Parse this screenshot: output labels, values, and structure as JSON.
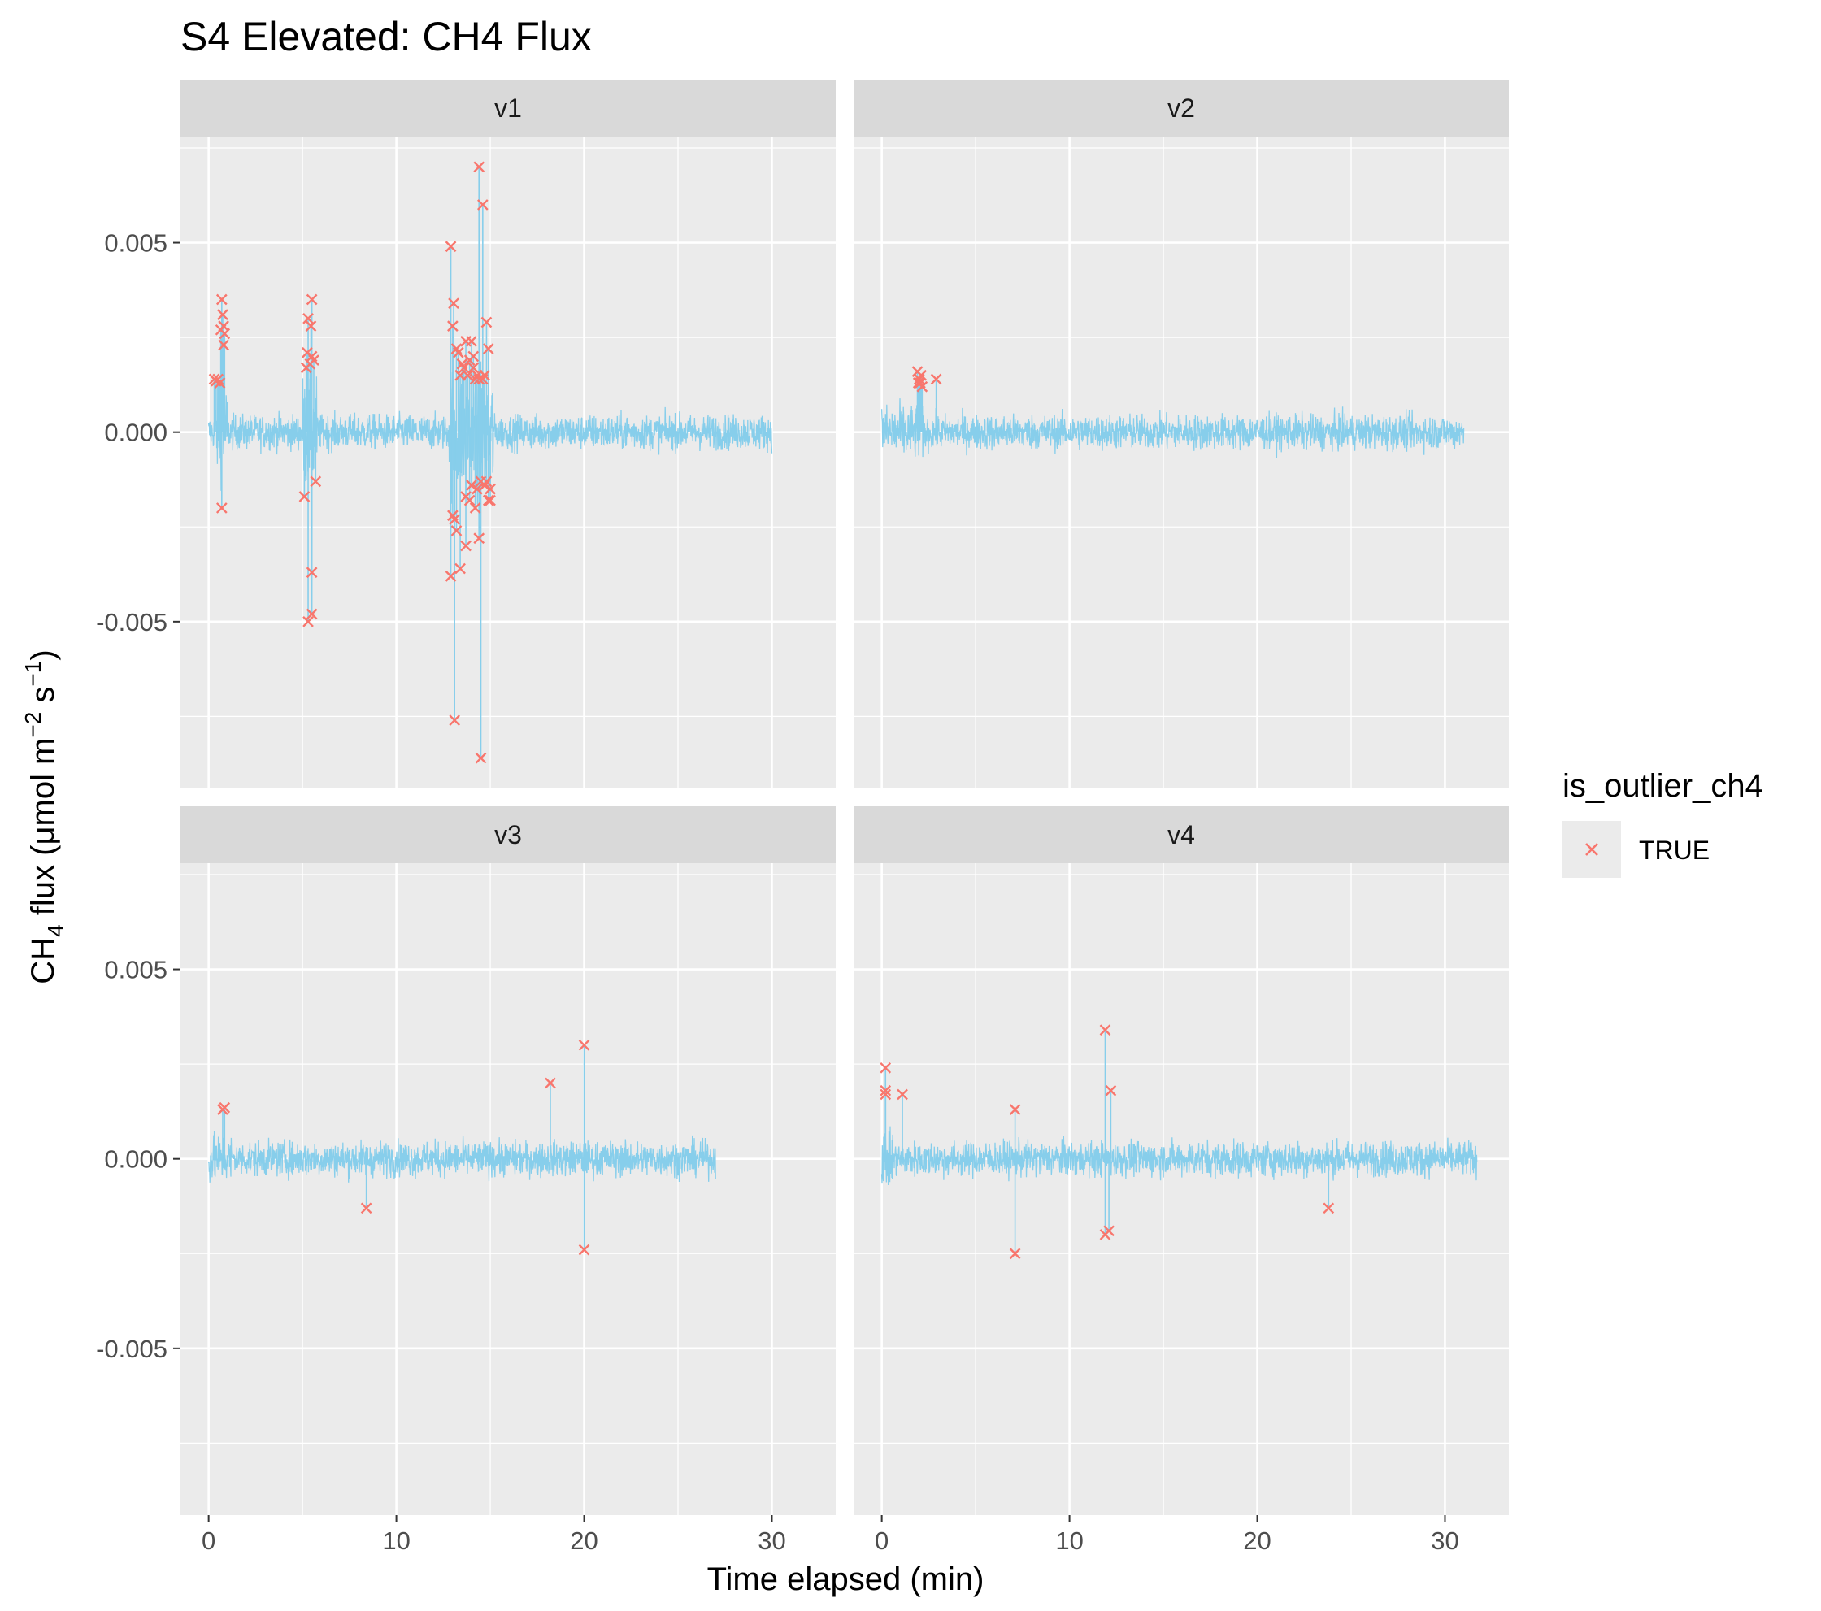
{
  "chart_data": {
    "type": "line",
    "title": "S4 Elevated: CH4 Flux",
    "xlabel": "Time elapsed (min)",
    "ylabel": {
      "main": "CH",
      "sub": "4",
      "rest": " flux (μmol m",
      "sup1": "−2",
      "mid": " s",
      "sup2": "−1",
      "end": ")"
    },
    "xlim": [
      -1.5,
      33.4
    ],
    "ylim": [
      -0.0094,
      0.0078
    ],
    "x_ticks": [
      0,
      10,
      20,
      30
    ],
    "y_ticks": [
      0.005,
      0.0,
      -0.005
    ],
    "y_tick_labels": [
      "0.005",
      "0.000",
      "-0.005"
    ],
    "grid": true,
    "line_color": "#87ceeb",
    "outlier_color": "#f8766d",
    "legend": {
      "title": "is_outlier_ch4",
      "entries": [
        "TRUE"
      ],
      "placement": "right"
    },
    "panels": [
      {
        "name": "v1",
        "x_max": 30.0,
        "noise_amplitude": 0.0005,
        "bursts": [
          {
            "x0": 0.3,
            "x1": 1.0,
            "amp": 0.0013
          },
          {
            "x0": 5.0,
            "x1": 5.8,
            "amp": 0.0016
          },
          {
            "x0": 12.8,
            "x1": 15.2,
            "amp": 0.0018
          }
        ],
        "outliers": [
          [
            0.3,
            0.0014
          ],
          [
            0.4,
            0.00135
          ],
          [
            0.5,
            0.0014
          ],
          [
            0.6,
            0.0013
          ],
          [
            0.65,
            0.0027
          ],
          [
            0.7,
            0.0035
          ],
          [
            0.75,
            0.0031
          ],
          [
            0.8,
            0.0028
          ],
          [
            0.8,
            0.0023
          ],
          [
            0.85,
            0.0026
          ],
          [
            0.7,
            -0.002
          ],
          [
            5.1,
            -0.0017
          ],
          [
            5.2,
            0.0017
          ],
          [
            5.25,
            0.0021
          ],
          [
            5.3,
            0.003
          ],
          [
            5.3,
            -0.005
          ],
          [
            5.4,
            0.0018
          ],
          [
            5.45,
            0.0028
          ],
          [
            5.5,
            0.0035
          ],
          [
            5.5,
            0.002
          ],
          [
            5.5,
            -0.0037
          ],
          [
            5.5,
            -0.0048
          ],
          [
            5.6,
            0.0019
          ],
          [
            5.7,
            -0.0013
          ],
          [
            12.9,
            0.0049
          ],
          [
            12.9,
            -0.0038
          ],
          [
            13.0,
            0.0028
          ],
          [
            13.0,
            -0.0022
          ],
          [
            13.05,
            0.0034
          ],
          [
            13.1,
            -0.0076
          ],
          [
            13.1,
            -0.0023
          ],
          [
            13.2,
            0.0022
          ],
          [
            13.2,
            -0.0026
          ],
          [
            13.3,
            0.0021
          ],
          [
            13.4,
            -0.0036
          ],
          [
            13.4,
            0.0015
          ],
          [
            13.5,
            0.0018
          ],
          [
            13.6,
            0.0017
          ],
          [
            13.7,
            0.0024
          ],
          [
            13.7,
            -0.0017
          ],
          [
            13.7,
            -0.003
          ],
          [
            13.8,
            0.0015
          ],
          [
            13.9,
            -0.0018
          ],
          [
            13.9,
            0.0019
          ],
          [
            14.0,
            0.0024
          ],
          [
            14.0,
            -0.0014
          ],
          [
            14.1,
            0.002
          ],
          [
            14.1,
            0.0017
          ],
          [
            14.2,
            -0.002
          ],
          [
            14.2,
            0.0014
          ],
          [
            14.3,
            0.0015
          ],
          [
            14.3,
            -0.0015
          ],
          [
            14.4,
            -0.0028
          ],
          [
            14.4,
            0.0014
          ],
          [
            14.4,
            0.007
          ],
          [
            14.5,
            -0.0013
          ],
          [
            14.5,
            -0.0086
          ],
          [
            14.6,
            0.0014
          ],
          [
            14.6,
            0.006
          ],
          [
            14.7,
            -0.0014
          ],
          [
            14.7,
            0.0015
          ],
          [
            14.8,
            0.0029
          ],
          [
            14.8,
            -0.0013
          ],
          [
            14.9,
            0.0022
          ],
          [
            14.9,
            -0.0018
          ],
          [
            15.0,
            -0.0018
          ],
          [
            15.0,
            -0.0015
          ]
        ]
      },
      {
        "name": "v2",
        "x_max": 31.0,
        "noise_amplitude": 0.0005,
        "bursts": [
          {
            "x0": 0.0,
            "x1": 2.2,
            "amp": 0.0008
          }
        ],
        "outliers": [
          [
            1.9,
            0.0016
          ],
          [
            1.95,
            0.0013
          ],
          [
            2.0,
            0.0014
          ],
          [
            2.05,
            0.0013
          ],
          [
            2.1,
            0.0015
          ],
          [
            2.15,
            0.0012
          ],
          [
            2.9,
            0.0014
          ]
        ]
      },
      {
        "name": "v3",
        "x_max": 27.0,
        "noise_amplitude": 0.0005,
        "bursts": [
          {
            "x0": 0.0,
            "x1": 1.2,
            "amp": 0.0007
          }
        ],
        "outliers": [
          [
            0.75,
            0.0013
          ],
          [
            0.85,
            0.00135
          ],
          [
            8.4,
            -0.0013
          ],
          [
            18.2,
            0.002
          ],
          [
            20.0,
            0.003
          ],
          [
            20.0,
            -0.0024
          ]
        ]
      },
      {
        "name": "v4",
        "x_max": 31.7,
        "noise_amplitude": 0.0005,
        "bursts": [
          {
            "x0": 0.0,
            "x1": 0.6,
            "amp": 0.0009
          }
        ],
        "outliers": [
          [
            0.2,
            0.0024
          ],
          [
            0.2,
            0.0018
          ],
          [
            0.2,
            0.0017
          ],
          [
            1.1,
            0.0017
          ],
          [
            7.1,
            0.0013
          ],
          [
            7.1,
            -0.0025
          ],
          [
            11.9,
            0.0034
          ],
          [
            12.2,
            0.0018
          ],
          [
            11.9,
            -0.002
          ],
          [
            12.1,
            -0.0019
          ],
          [
            23.8,
            -0.0013
          ]
        ]
      }
    ]
  }
}
